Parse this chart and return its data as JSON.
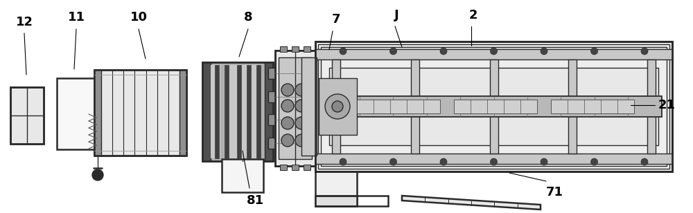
{
  "bg_color": "#ffffff",
  "lc": "#2a2a2a",
  "lc_light": "#888888",
  "gray_light": "#e8e8e8",
  "gray_med": "#c8c8c8",
  "gray_dark": "#909090",
  "figsize": [
    10.0,
    3.08
  ],
  "dpi": 100,
  "label_fs": 13,
  "lw": 1.0,
  "lw_thick": 1.8
}
